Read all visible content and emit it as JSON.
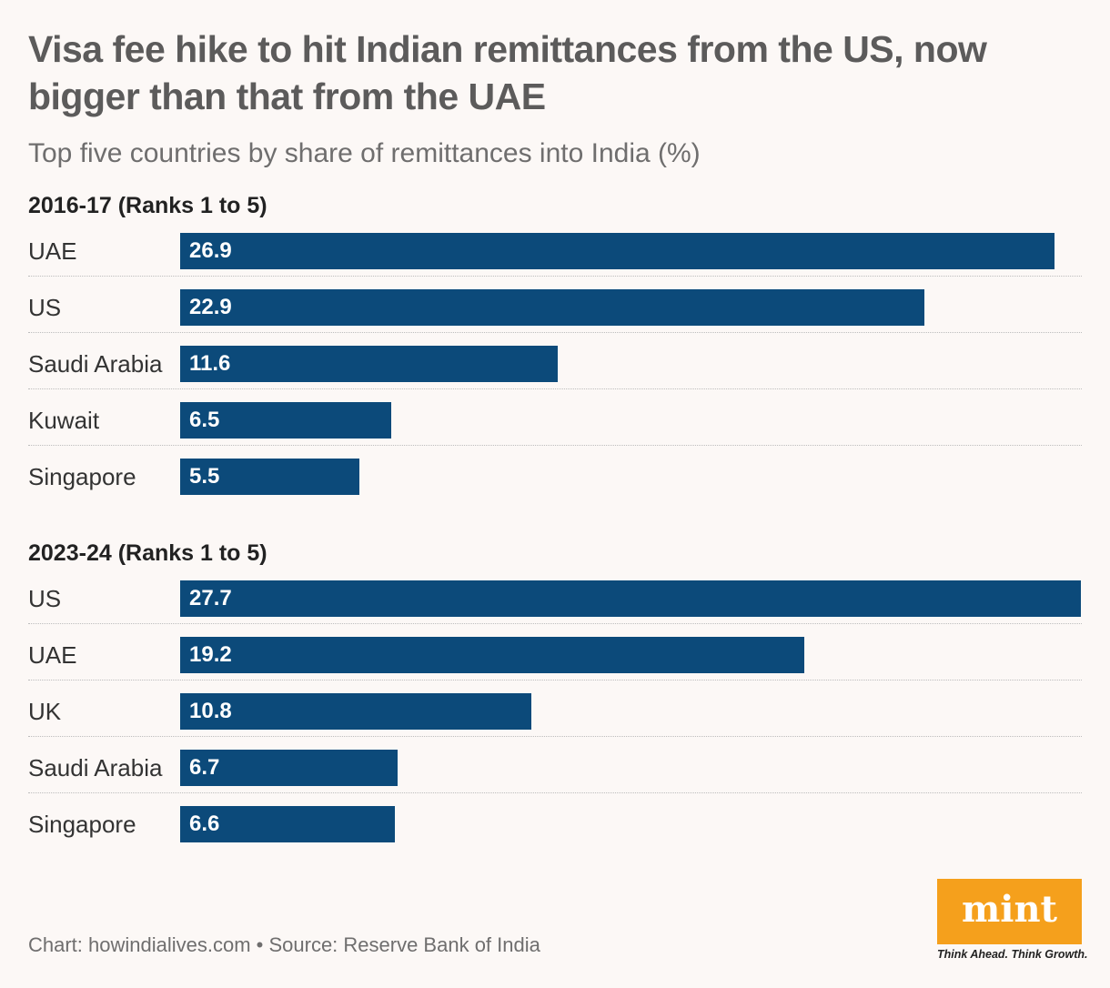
{
  "header": {
    "title": "Visa fee hike to hit Indian remittances from the US, now bigger than that from the UAE",
    "subtitle": "Top five countries by share of remittances into India (%)"
  },
  "chart_data": [
    {
      "type": "bar",
      "orientation": "horizontal",
      "title": "2016-17 (Ranks 1 to 5)",
      "categories": [
        "UAE",
        "US",
        "Saudi Arabia",
        "Kuwait",
        "Singapore"
      ],
      "values": [
        26.9,
        22.9,
        11.6,
        6.5,
        5.5
      ],
      "value_labels": [
        "26.9",
        "22.9",
        "11.6",
        "6.5",
        "5.5"
      ],
      "xlim": [
        0,
        27.7
      ],
      "bar_color": "#0c4a7a",
      "grid": false,
      "legend": "none"
    },
    {
      "type": "bar",
      "orientation": "horizontal",
      "title": "2023-24 (Ranks 1 to 5)",
      "categories": [
        "US",
        "UAE",
        "UK",
        "Saudi Arabia",
        "Singapore"
      ],
      "values": [
        27.7,
        19.2,
        10.8,
        6.7,
        6.6
      ],
      "value_labels": [
        "27.7",
        "19.2",
        "10.8",
        "6.7",
        "6.6"
      ],
      "xlim": [
        0,
        27.7
      ],
      "bar_color": "#0c4a7a",
      "grid": false,
      "legend": "none"
    }
  ],
  "footer": {
    "credit": "Chart: howindialives.com • Source: Reserve Bank of India"
  },
  "brand": {
    "logo_text": "mint",
    "tagline": "Think Ahead. Think Growth.",
    "color": "#f5a01c"
  }
}
